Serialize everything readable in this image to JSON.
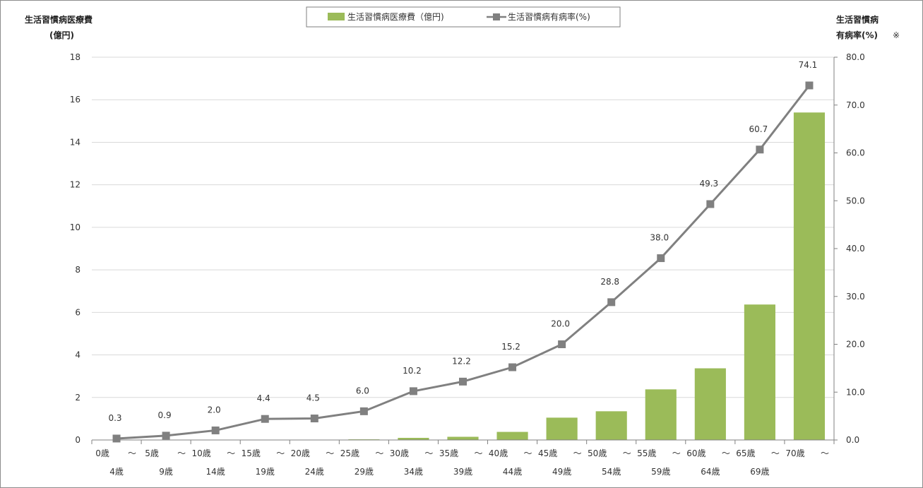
{
  "chart_data": {
    "type": "bar+line",
    "left_axis_title": [
      "生活習慣病医療費",
      "(億円)"
    ],
    "right_axis_title": [
      "生活習慣病",
      "有病率(%)"
    ],
    "right_axis_note": "※",
    "categories": [
      [
        "0歳",
        "～",
        "4歳"
      ],
      [
        "5歳",
        "～",
        "9歳"
      ],
      [
        "10歳",
        "～",
        "14歳"
      ],
      [
        "15歳",
        "～",
        "19歳"
      ],
      [
        "20歳",
        "～",
        "24歳"
      ],
      [
        "25歳",
        "～",
        "29歳"
      ],
      [
        "30歳",
        "～",
        "34歳"
      ],
      [
        "35歳",
        "～",
        "39歳"
      ],
      [
        "40歳",
        "～",
        "44歳"
      ],
      [
        "45歳",
        "～",
        "49歳"
      ],
      [
        "50歳",
        "～",
        "54歳"
      ],
      [
        "55歳",
        "～",
        "59歳"
      ],
      [
        "60歳",
        "～",
        "64歳"
      ],
      [
        "65歳",
        "～",
        "69歳"
      ],
      [
        "70歳",
        "～",
        ""
      ]
    ],
    "series": [
      {
        "name": "生活習慣病医療費（億円)",
        "type": "bar",
        "axis": "left",
        "color": "#9bbb59",
        "values": [
          0.0,
          0.0,
          0.0,
          0.01,
          0.01,
          0.03,
          0.1,
          0.15,
          0.38,
          1.05,
          1.35,
          2.38,
          3.37,
          6.37,
          15.4
        ]
      },
      {
        "name": "生活習慣病有病率(%)",
        "type": "line",
        "axis": "right",
        "color": "#808080",
        "values": [
          0.3,
          0.9,
          2.0,
          4.4,
          4.5,
          6.0,
          10.2,
          12.2,
          15.2,
          20.0,
          28.8,
          38.0,
          49.3,
          60.7,
          74.1
        ],
        "labels": [
          "0.3",
          "0.9",
          "2.0",
          "4.4",
          "4.5",
          "6.0",
          "10.2",
          "12.2",
          "15.2",
          "20.0",
          "28.8",
          "38.0",
          "49.3",
          "60.7",
          "74.1"
        ]
      }
    ],
    "left_ylim": [
      0,
      18
    ],
    "left_ticks": [
      "0",
      "2",
      "4",
      "6",
      "8",
      "10",
      "12",
      "14",
      "16",
      "18"
    ],
    "right_ylim": [
      0,
      80
    ],
    "right_ticks": [
      "0.0",
      "10.0",
      "20.0",
      "30.0",
      "40.0",
      "50.0",
      "60.0",
      "70.0",
      "80.0"
    ],
    "grid": true,
    "legend_position": "top-center"
  }
}
